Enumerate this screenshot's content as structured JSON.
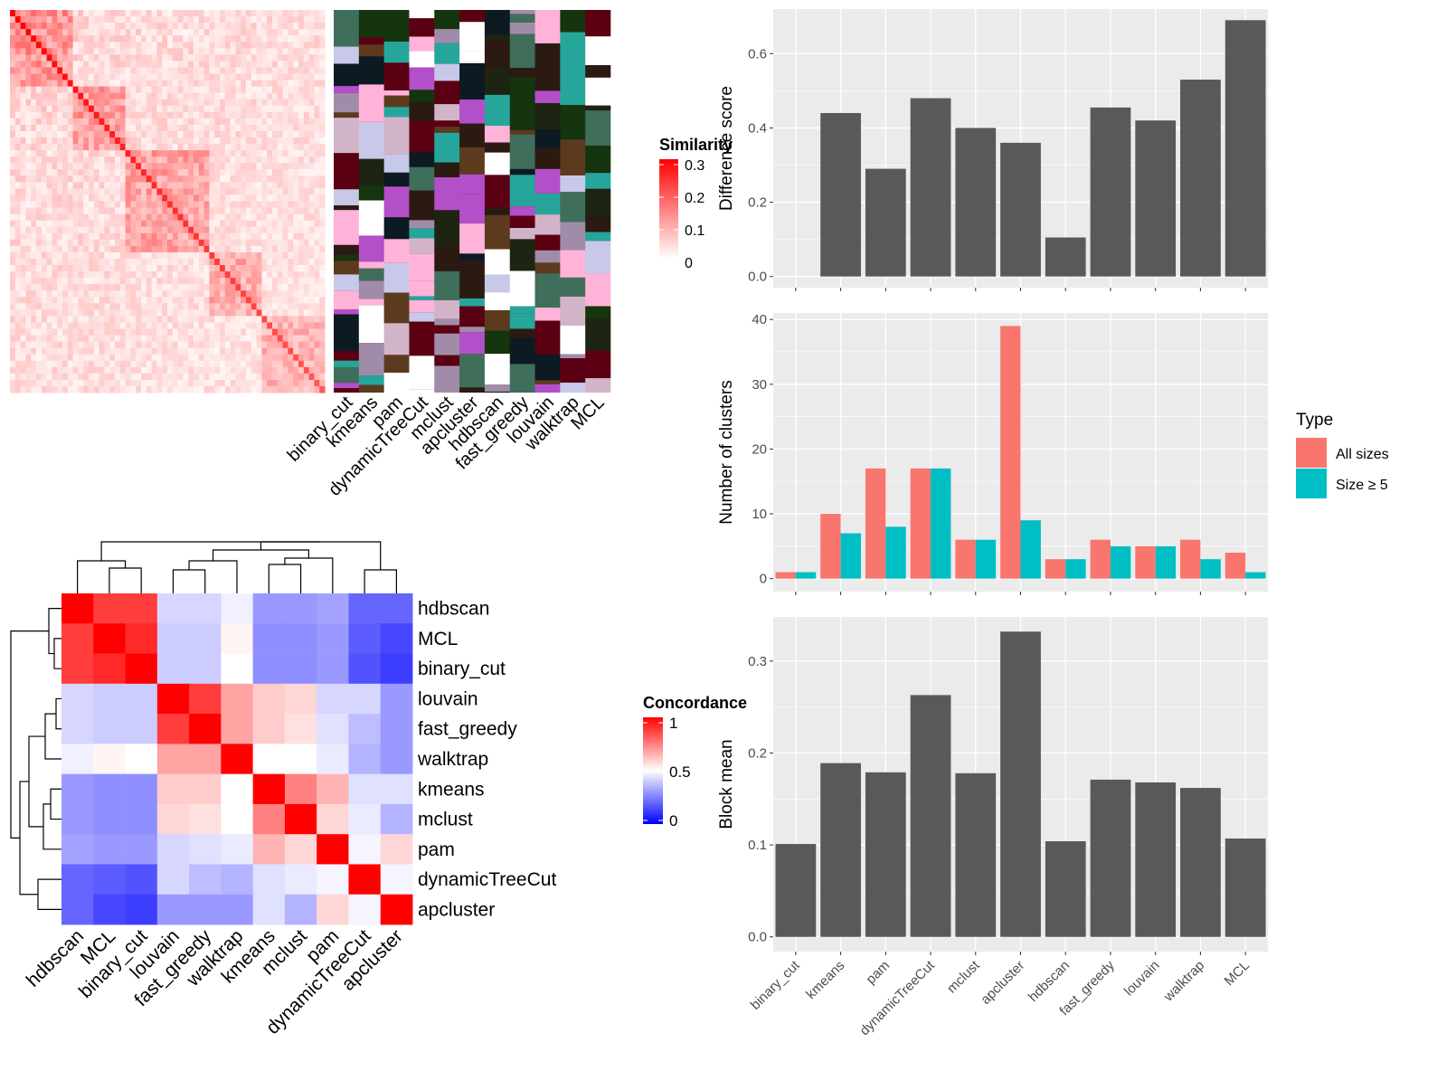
{
  "similarity_legend": {
    "title": "Similarity",
    "ticks": [
      "0.3",
      "0.2",
      "0.1",
      "0"
    ]
  },
  "concordance_legend": {
    "title": "Concordance",
    "ticks": [
      "1",
      "0.5",
      "0"
    ]
  },
  "methods_top_axis": [
    "binary_cut",
    "kmeans",
    "pam",
    "dynamicTreeCut",
    "mclust",
    "apcluster",
    "hdbscan",
    "fast_greedy",
    "louvain",
    "walktrap",
    "MCL"
  ],
  "heatmap_order": [
    "hdbscan",
    "MCL",
    "binary_cut",
    "louvain",
    "fast_greedy",
    "walktrap",
    "kmeans",
    "mclust",
    "pam",
    "dynamicTreeCut",
    "apcluster"
  ],
  "colors": {
    "bar_gray": "#595959",
    "panel_bg": "#EBEBEB",
    "all_sizes": "#F8766D",
    "size_ge5": "#00BFC4",
    "sim_high": "#FF0000",
    "conc_high": "#FF0000",
    "conc_mid": "#FFFFFF",
    "conc_low": "#0000FF"
  },
  "chart_data": [
    {
      "type": "heatmap",
      "title": "Similarity",
      "scale": [
        0,
        0.3
      ],
      "note": "similarity matrix of terms with cluster assignments per method"
    },
    {
      "type": "heatmap",
      "title": "Concordance",
      "rows": [
        "hdbscan",
        "MCL",
        "binary_cut",
        "louvain",
        "fast_greedy",
        "walktrap",
        "kmeans",
        "mclust",
        "pam",
        "dynamicTreeCut",
        "apcluster"
      ],
      "cols": [
        "hdbscan",
        "MCL",
        "binary_cut",
        "louvain",
        "fast_greedy",
        "walktrap",
        "kmeans",
        "mclust",
        "pam",
        "dynamicTreeCut",
        "apcluster"
      ],
      "values": [
        [
          1.0,
          0.88,
          0.88,
          0.42,
          0.42,
          0.47,
          0.3,
          0.3,
          0.32,
          0.2,
          0.2
        ],
        [
          0.88,
          1.0,
          0.92,
          0.4,
          0.4,
          0.52,
          0.28,
          0.28,
          0.3,
          0.18,
          0.14
        ],
        [
          0.88,
          0.92,
          1.0,
          0.4,
          0.4,
          0.5,
          0.28,
          0.28,
          0.3,
          0.16,
          0.12
        ],
        [
          0.42,
          0.4,
          0.4,
          1.0,
          0.88,
          0.68,
          0.6,
          0.58,
          0.42,
          0.42,
          0.3
        ],
        [
          0.42,
          0.4,
          0.4,
          0.88,
          1.0,
          0.68,
          0.6,
          0.56,
          0.44,
          0.37,
          0.3
        ],
        [
          0.47,
          0.52,
          0.5,
          0.68,
          0.68,
          1.0,
          0.5,
          0.5,
          0.46,
          0.35,
          0.3
        ],
        [
          0.3,
          0.28,
          0.28,
          0.6,
          0.6,
          0.5,
          1.0,
          0.75,
          0.65,
          0.44,
          0.44
        ],
        [
          0.3,
          0.28,
          0.28,
          0.58,
          0.56,
          0.5,
          0.75,
          1.0,
          0.58,
          0.46,
          0.35
        ],
        [
          0.32,
          0.3,
          0.3,
          0.42,
          0.44,
          0.46,
          0.65,
          0.58,
          1.0,
          0.48,
          0.58
        ],
        [
          0.2,
          0.18,
          0.16,
          0.42,
          0.37,
          0.35,
          0.44,
          0.46,
          0.48,
          1.0,
          0.48
        ],
        [
          0.2,
          0.14,
          0.12,
          0.3,
          0.3,
          0.3,
          0.44,
          0.35,
          0.58,
          0.48,
          1.0
        ]
      ],
      "scale": [
        0,
        1
      ]
    },
    {
      "type": "bar",
      "ylabel": "Difference score",
      "categories": [
        "binary_cut",
        "kmeans",
        "pam",
        "dynamicTreeCut",
        "mclust",
        "apcluster",
        "hdbscan",
        "fast_greedy",
        "louvain",
        "walktrap",
        "MCL"
      ],
      "values": [
        0.0,
        0.44,
        0.29,
        0.48,
        0.4,
        0.36,
        0.105,
        0.455,
        0.42,
        0.53,
        0.69
      ],
      "ylim": [
        -0.03,
        0.72
      ],
      "yticks": [
        0.0,
        0.2,
        0.4,
        0.6
      ],
      "ytick_labels": [
        "0.0",
        "0.2",
        "0.4",
        "0.6"
      ],
      "grid": true
    },
    {
      "type": "bar",
      "ylabel": "Number of clusters",
      "categories": [
        "binary_cut",
        "kmeans",
        "pam",
        "dynamicTreeCut",
        "mclust",
        "apcluster",
        "hdbscan",
        "fast_greedy",
        "louvain",
        "walktrap",
        "MCL"
      ],
      "series": [
        {
          "name": "All sizes",
          "values": [
            1,
            10,
            17,
            17,
            6,
            39,
            3,
            6,
            5,
            6,
            4
          ]
        },
        {
          "name": "Size ≥ 5",
          "values": [
            1,
            7,
            8,
            17,
            6,
            9,
            3,
            5,
            5,
            3,
            1
          ]
        }
      ],
      "ylim": [
        -2,
        41
      ],
      "yticks": [
        0,
        10,
        20,
        30,
        40
      ],
      "ytick_labels": [
        "0",
        "10",
        "20",
        "30",
        "40"
      ],
      "legend": {
        "title": "Type",
        "position": "right"
      },
      "grid": true
    },
    {
      "type": "bar",
      "ylabel": "Block mean",
      "categories": [
        "binary_cut",
        "kmeans",
        "pam",
        "dynamicTreeCut",
        "mclust",
        "apcluster",
        "hdbscan",
        "fast_greedy",
        "louvain",
        "walktrap",
        "MCL"
      ],
      "values": [
        0.101,
        0.189,
        0.179,
        0.263,
        0.178,
        0.332,
        0.104,
        0.171,
        0.168,
        0.162,
        0.107
      ],
      "ylim": [
        -0.016,
        0.348
      ],
      "yticks": [
        0.0,
        0.1,
        0.2,
        0.3
      ],
      "ytick_labels": [
        "0.0",
        "0.1",
        "0.2",
        "0.3"
      ],
      "grid": true
    }
  ]
}
